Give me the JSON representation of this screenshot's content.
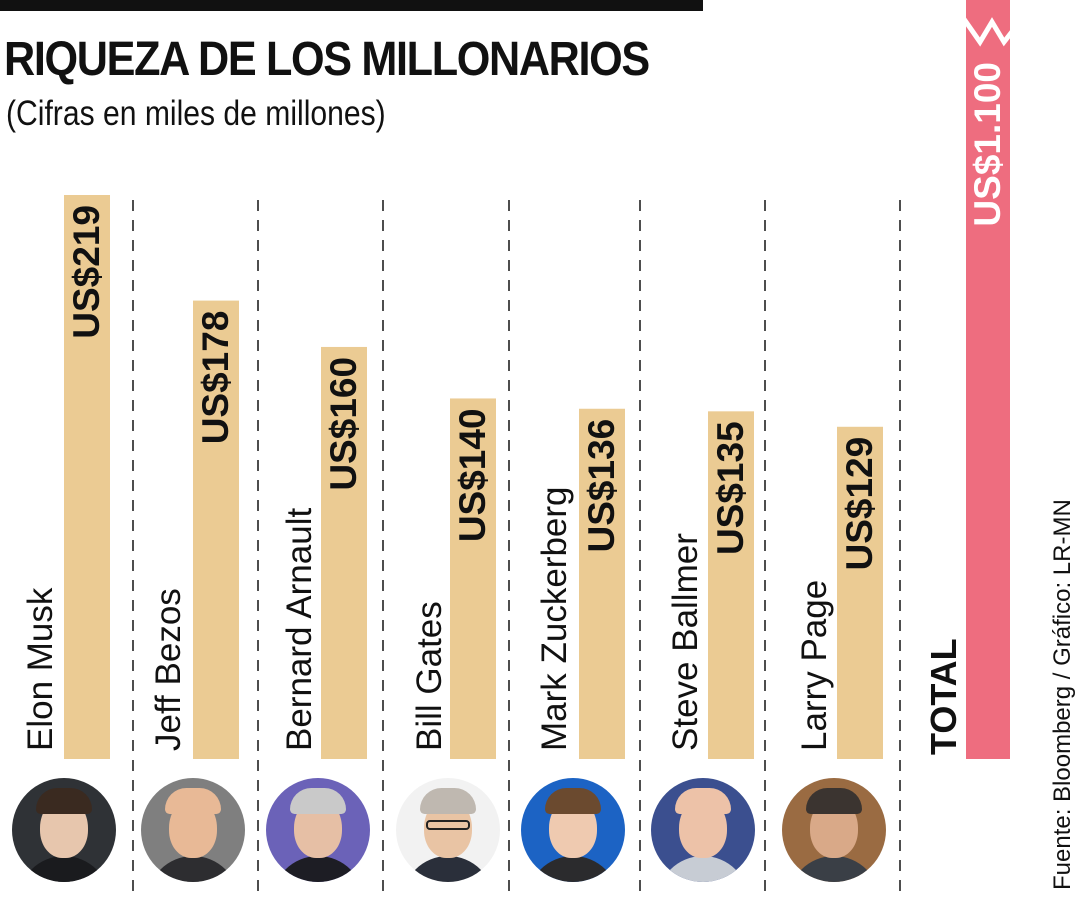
{
  "header": {
    "title": "RIQUEZA DE LOS MILLONARIOS",
    "subtitle": "(Cifras en miles de millones)"
  },
  "chart_data": {
    "type": "bar",
    "orientation": "vertical",
    "title": "RIQUEZA DE LOS MILLONARIOS",
    "subtitle": "(Cifras en miles de millones)",
    "unit": "miles de millones",
    "value_prefix": "US$",
    "categories": [
      "Elon Musk",
      "Jeff Bezos",
      "Bernard Arnault",
      "Bill Gates",
      "Mark Zuckerberg",
      "Steve Ballmer",
      "Larry Page"
    ],
    "values": [
      219,
      178,
      160,
      140,
      136,
      135,
      129
    ],
    "value_labels": [
      "US$219",
      "US$178",
      "US$160",
      "US$140",
      "US$136",
      "US$135",
      "US$129"
    ],
    "total": {
      "label": "TOTAL",
      "value": 1100,
      "value_label": "US$1.100"
    },
    "legend": "none",
    "grid": false,
    "source": "Fuente: Bloomberg / Gráfico: LR-MN"
  },
  "colors": {
    "bar": "#ebcb93",
    "total_bar": "#ee6d7f",
    "text": "#111111",
    "divider": "#222222",
    "rule": "#111111"
  },
  "avatars": [
    {
      "name": "Elon Musk",
      "icon": "portrait-elon-musk",
      "bg": "#2f3236",
      "skin": "#e7c6ad",
      "hair": "#3a2a20",
      "suit": "#1a1b1e"
    },
    {
      "name": "Jeff Bezos",
      "icon": "portrait-jeff-bezos",
      "bg": "#7f7f7f",
      "skin": "#e8b996",
      "hair": "#e8b996",
      "suit": "#2d2d30"
    },
    {
      "name": "Bernard Arnault",
      "icon": "portrait-bernard-arnault",
      "bg": "#6b62b8",
      "skin": "#e6bfa5",
      "hair": "#c9c9c9",
      "suit": "#1d1d24"
    },
    {
      "name": "Bill Gates",
      "icon": "portrait-bill-gates",
      "bg": "#f2f2f2",
      "skin": "#e9c4a4",
      "hair": "#bfb8b0",
      "suit": "#2a2f3a"
    },
    {
      "name": "Mark Zuckerberg",
      "icon": "portrait-mark-zuckerberg",
      "bg": "#1c63c4",
      "skin": "#efcab0",
      "hair": "#6b4a2f",
      "suit": "#2b2b2d"
    },
    {
      "name": "Steve Ballmer",
      "icon": "portrait-steve-ballmer",
      "bg": "#3b4f8f",
      "skin": "#edc2a8",
      "hair": "#edc2a8",
      "suit": "#c7ccd4"
    },
    {
      "name": "Larry Page",
      "icon": "portrait-larry-page",
      "bg": "#9a6b42",
      "skin": "#d9a988",
      "hair": "#3b3430",
      "suit": "#3a3f46"
    }
  ]
}
